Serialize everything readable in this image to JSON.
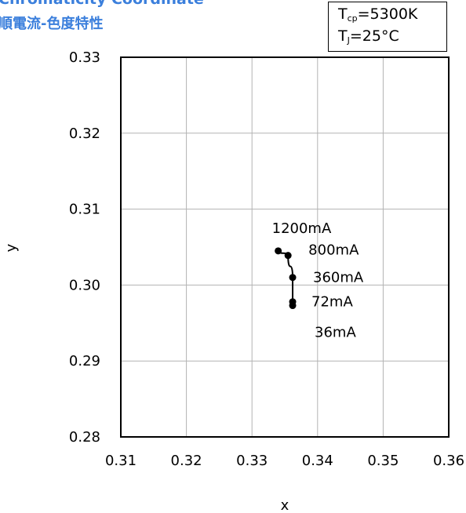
{
  "header": {
    "title": "Chromaticity Coordinate",
    "subtitle": "順電流-色度特性",
    "title_color": "#3b7fdc"
  },
  "conditions": {
    "line1_symbol": "T",
    "line1_sub": "cp",
    "line1_value": "=5300K",
    "line2_symbol": "T",
    "line2_sub": "J",
    "line2_value": "=25°C"
  },
  "chart_data": {
    "type": "line",
    "title": "Chromaticity Coordinate",
    "xlabel": "x",
    "ylabel": "y",
    "xlim": [
      0.31,
      0.36
    ],
    "ylim": [
      0.28,
      0.33
    ],
    "xticks": [
      "0.31",
      "0.32",
      "0.33",
      "0.34",
      "0.35",
      "0.36"
    ],
    "yticks": [
      "0.28",
      "0.29",
      "0.30",
      "0.31",
      "0.32",
      "0.33"
    ],
    "grid": true,
    "line_color": "#000000",
    "series": [
      {
        "points": [
          {
            "x": 0.3362,
            "y": 0.2973,
            "label": "36mA"
          },
          {
            "x": 0.3362,
            "y": 0.2978,
            "label": "72mA"
          },
          {
            "x": 0.3362,
            "y": 0.301,
            "label": "360mA"
          },
          {
            "x": 0.3355,
            "y": 0.3039,
            "label": "800mA"
          },
          {
            "x": 0.334,
            "y": 0.3045,
            "label": "1200mA"
          }
        ]
      }
    ]
  }
}
